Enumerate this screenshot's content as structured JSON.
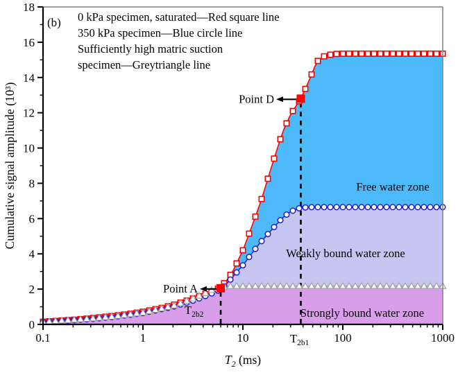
{
  "figure_label": "(b)",
  "legend": {
    "lines": [
      "0 kPa specimen, saturated—Red square line",
      "350 kPa specimen—Blue circle line",
      "Sufficiently high matric suction",
      "specimen—Greytriangle line"
    ]
  },
  "axes": {
    "x": {
      "label_base": "T",
      "label_sub": "2",
      "label_unit": " (ms)",
      "scale": "log",
      "min": 0.1,
      "max": 1000,
      "tick_values": [
        0.1,
        1,
        10,
        100,
        1000
      ],
      "tick_labels": [
        "0.1",
        "1",
        "10",
        "100",
        "1000"
      ]
    },
    "y": {
      "label": "Cumulative signal amplitude  (10³)",
      "scale": "linear",
      "min": 0,
      "max": 18,
      "tick_values": [
        0,
        2,
        4,
        6,
        8,
        10,
        12,
        14,
        16,
        18
      ],
      "tick_labels": [
        "0",
        "2",
        "4",
        "6",
        "8",
        "10",
        "12",
        "14",
        "16",
        "18"
      ]
    }
  },
  "chart_data": {
    "type": "line",
    "title": "",
    "xlabel": "T2 (ms)",
    "ylabel": "Cumulative signal amplitude (10^3)",
    "x_scale": "log",
    "xlim": [
      0.1,
      1000
    ],
    "ylim": [
      0,
      18
    ],
    "grid": false,
    "series": [
      {
        "name": "0 kPa specimen, saturated",
        "marker": "square",
        "color": "#FF0000",
        "plateau": 15.35,
        "anchors": [
          [
            0.1,
            0.15
          ],
          [
            0.2,
            0.26
          ],
          [
            0.3,
            0.35
          ],
          [
            0.5,
            0.48
          ],
          [
            0.7,
            0.58
          ],
          [
            1,
            0.72
          ],
          [
            1.5,
            0.92
          ],
          [
            2,
            1.1
          ],
          [
            3,
            1.42
          ],
          [
            4,
            1.68
          ],
          [
            5,
            1.88
          ],
          [
            6,
            2.1
          ],
          [
            7,
            2.55
          ],
          [
            8,
            3.05
          ],
          [
            10,
            4.2
          ],
          [
            12,
            5.4
          ],
          [
            15,
            6.9
          ],
          [
            20,
            9.2
          ],
          [
            25,
            10.9
          ],
          [
            30,
            11.9
          ],
          [
            38,
            12.8
          ],
          [
            45,
            13.7
          ],
          [
            55,
            14.9
          ],
          [
            65,
            15.2
          ],
          [
            80,
            15.33
          ],
          [
            100,
            15.35
          ],
          [
            1000,
            15.35
          ]
        ]
      },
      {
        "name": "350 kPa specimen",
        "marker": "circle",
        "color": "#2020CC",
        "plateau": 6.65,
        "anchors": [
          [
            0.1,
            0.13
          ],
          [
            0.3,
            0.3
          ],
          [
            0.5,
            0.42
          ],
          [
            1,
            0.64
          ],
          [
            2,
            1.0
          ],
          [
            3,
            1.3
          ],
          [
            4,
            1.55
          ],
          [
            5,
            1.78
          ],
          [
            6,
            1.98
          ],
          [
            7,
            2.35
          ],
          [
            8,
            2.72
          ],
          [
            10,
            3.35
          ],
          [
            12,
            3.95
          ],
          [
            15,
            4.65
          ],
          [
            20,
            5.45
          ],
          [
            25,
            6.05
          ],
          [
            30,
            6.4
          ],
          [
            38,
            6.62
          ],
          [
            50,
            6.65
          ],
          [
            1000,
            6.65
          ]
        ]
      },
      {
        "name": "Sufficiently high matric suction specimen",
        "marker": "triangle",
        "color": "#A0A0A0",
        "plateau": 2.18,
        "anchors": [
          [
            0.1,
            0.15
          ],
          [
            0.3,
            0.33
          ],
          [
            0.5,
            0.45
          ],
          [
            1,
            0.67
          ],
          [
            2,
            1.05
          ],
          [
            3,
            1.42
          ],
          [
            4,
            1.72
          ],
          [
            5,
            1.98
          ],
          [
            6,
            2.12
          ],
          [
            7,
            2.17
          ],
          [
            8,
            2.18
          ],
          [
            1000,
            2.18
          ]
        ]
      }
    ],
    "zones": [
      {
        "label": "Free water zone",
        "color": "#4CB9F8",
        "between": [
          "0 kPa specimen, saturated",
          "350 kPa specimen"
        ]
      },
      {
        "label": "Weakly bound water zone",
        "color": "#C5C6F1",
        "between": [
          "350 kPa specimen",
          "Sufficiently high matric suction specimen"
        ]
      },
      {
        "label": "Strongly bound water zone",
        "color": "#D99EE9",
        "between": [
          "Sufficiently high matric suction specimen",
          "baseline"
        ]
      }
    ],
    "annotations": {
      "point_a": {
        "label": "Point A",
        "t2_ms": 6,
        "value": 2.05
      },
      "point_d": {
        "label": "Point D",
        "t2_ms": 38,
        "value": 12.8
      },
      "t2b2": {
        "base": "T",
        "sub": "2b2",
        "t2_ms": 6
      },
      "t2b1": {
        "base": "T",
        "sub": "2b1",
        "t2_ms": 38
      },
      "free_zone_boundary_value": 6.65
    }
  }
}
